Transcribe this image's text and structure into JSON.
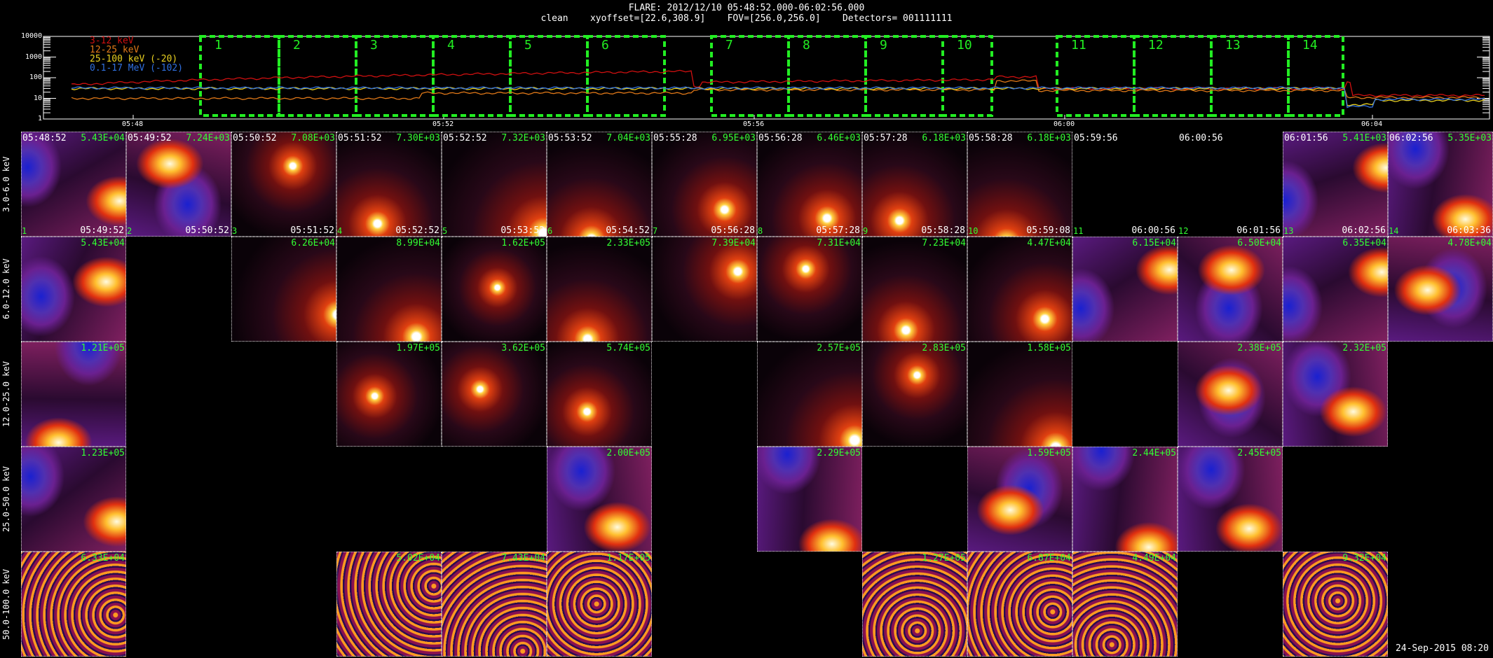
{
  "header": {
    "title": "FLARE: 2012/12/10 05:48:52.000-06:02:56.000",
    "line2": "clean    xyoffset=[22.6,308.9]    FOV=[256.0,256.0]    Detectors= 001111111"
  },
  "lightcurve": {
    "y_ticks": [
      "10000",
      "1000",
      "100",
      "10",
      "1"
    ],
    "x_ticks": [
      "05:48",
      "05:52",
      "05:56",
      "06:00",
      "06:04"
    ],
    "legend": [
      {
        "label": "3-12 keV",
        "color": "#d01010"
      },
      {
        "label": "12-25 keV",
        "color": "#e07818"
      },
      {
        "label": "25-100 keV (-20)",
        "color": "#e8d020"
      },
      {
        "label": "0.1-17 MeV (-102)",
        "color": "#3070e0"
      }
    ],
    "intervals": [
      "1",
      "2",
      "3",
      "4",
      "5",
      "6",
      "7",
      "8",
      "9",
      "10",
      "11",
      "12",
      "13",
      "14"
    ],
    "interval_color": "#22ee22"
  },
  "row_labels": [
    "3.0-6.0 keV",
    "6.0-12.0 keV",
    "12.0-25.0 keV",
    "25.0-50.0 keV",
    "50.0-100.0 keV"
  ],
  "columns": [
    {
      "idx": "1",
      "start": "05:48:52",
      "end": "05:49:52"
    },
    {
      "idx": "2",
      "start": "05:49:52",
      "end": "05:50:52"
    },
    {
      "idx": "3",
      "start": "05:50:52",
      "end": "05:51:52"
    },
    {
      "idx": "4",
      "start": "05:51:52",
      "end": "05:52:52"
    },
    {
      "idx": "5",
      "start": "05:52:52",
      "end": "05:53:52"
    },
    {
      "idx": "6",
      "start": "05:53:52",
      "end": "05:54:52"
    },
    {
      "idx": "7",
      "start": "05:55:28",
      "end": "05:56:28"
    },
    {
      "idx": "8",
      "start": "05:56:28",
      "end": "05:57:28"
    },
    {
      "idx": "9",
      "start": "05:57:28",
      "end": "05:58:28"
    },
    {
      "idx": "10",
      "start": "05:58:28",
      "end": "05:59:08"
    },
    {
      "idx": "11",
      "start": "05:59:56",
      "end": "06:00:56"
    },
    {
      "idx": "12",
      "start": "06:00:56",
      "end": "06:01:56"
    },
    {
      "idx": "13",
      "start": "06:01:56",
      "end": "06:02:56"
    },
    {
      "idx": "14",
      "start": "06:02:56",
      "end": "06:03:36"
    }
  ],
  "peaks": [
    [
      "5.43E+04",
      "7.24E+03",
      "7.08E+03",
      "7.30E+03",
      "7.32E+03",
      "7.04E+03",
      "6.95E+03",
      "6.46E+03",
      "6.18E+03",
      "6.18E+03",
      "",
      "",
      "5.41E+03",
      "5.35E+03"
    ],
    [
      "5.43E+04",
      "",
      "6.26E+04",
      "8.99E+04",
      "1.62E+05",
      "2.33E+05",
      "7.39E+04",
      "7.31E+04",
      "7.23E+04",
      "4.47E+04",
      "6.15E+04",
      "6.50E+04",
      "6.35E+04",
      "4.78E+04"
    ],
    [
      "1.21E+05",
      "",
      "",
      "1.97E+05",
      "3.62E+05",
      "5.74E+05",
      "",
      "2.57E+05",
      "2.83E+05",
      "1.58E+05",
      "",
      "2.38E+05",
      "2.32E+05",
      ""
    ],
    [
      "1.23E+05",
      "",
      "",
      "",
      "",
      "2.00E+05",
      "",
      "2.29E+05",
      "",
      "1.59E+05",
      "2.44E+05",
      "2.45E+05",
      "",
      ""
    ],
    [
      "6.33E+04",
      "",
      "",
      "5.02E+04",
      "7.43E+04",
      "1.17E+05",
      "",
      "",
      "1.27E+05",
      "6.87E+04",
      "4.49E+04",
      "",
      "9.32E+04",
      ""
    ]
  ],
  "stamp": "24-Sep-2015 08:20"
}
